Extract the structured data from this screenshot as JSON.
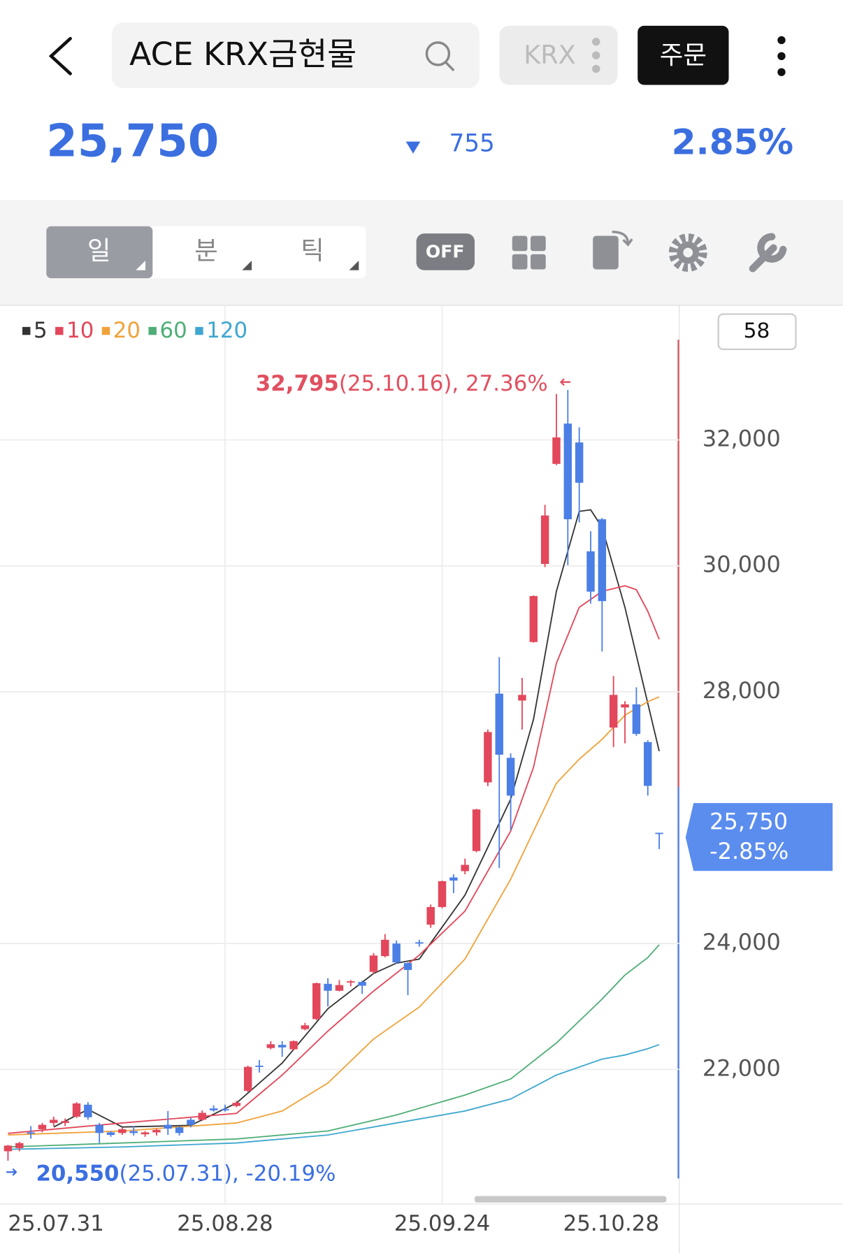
{
  "header": {
    "title": "ACE KRX금현물",
    "exchange": "KRX",
    "order_button": "주문"
  },
  "quote": {
    "price": "25,750",
    "change": "755",
    "change_percent": "2.85%"
  },
  "toolbar": {
    "tabs": [
      "일",
      "분",
      "틱"
    ],
    "toggle": "OFF"
  },
  "chart_data": {
    "type": "candlestick",
    "visible_count": "58",
    "categories": [
      "25.07.31",
      null,
      null,
      null,
      null,
      null,
      null,
      null,
      null,
      null,
      null,
      null,
      null,
      null,
      null,
      null,
      null,
      null,
      null,
      "25.08.28",
      null,
      null,
      null,
      null,
      null,
      null,
      null,
      null,
      null,
      null,
      null,
      null,
      null,
      null,
      null,
      null,
      null,
      null,
      "25.09.24",
      null,
      null,
      null,
      null,
      null,
      null,
      null,
      null,
      null,
      null,
      null,
      null,
      null,
      null,
      null,
      null,
      null,
      null,
      "25.10.28"
    ],
    "open": [
      20700,
      20750,
      21000,
      21050,
      21150,
      21150,
      21250,
      21440,
      21120,
      21000,
      20990,
      21020,
      20970,
      21000,
      21120,
      21080,
      21200,
      21200,
      21380,
      21370,
      21420,
      21660,
      22060,
      22340,
      22390,
      22320,
      22640,
      22800,
      23360,
      23250,
      23380,
      23390,
      23550,
      23800,
      24000,
      23690,
      24020,
      24300,
      24580,
      25050,
      25150,
      25470,
      26560,
      27970,
      26950,
      27860,
      28790,
      30030,
      31620,
      32260,
      31960,
      30230,
      30740,
      27430,
      27750,
      27800,
      27200,
      25760
    ],
    "high": [
      20800,
      20850,
      21100,
      21150,
      21250,
      21220,
      21480,
      21480,
      21150,
      21020,
      21080,
      21100,
      21020,
      21060,
      21340,
      21100,
      21230,
      21350,
      21430,
      21440,
      21500,
      22060,
      22150,
      22450,
      22450,
      22460,
      22740,
      23380,
      23450,
      23420,
      23420,
      23410,
      23850,
      24150,
      24050,
      23700,
      24060,
      24620,
      25000,
      25100,
      25350,
      26140,
      27400,
      28550,
      27020,
      28220,
      29530,
      30970,
      32730,
      32795,
      32200,
      30550,
      30760,
      28250,
      27850,
      28070,
      27230,
      25760
    ],
    "low": [
      20550,
      20700,
      20900,
      21000,
      21100,
      21100,
      21230,
      21200,
      20830,
      20930,
      20960,
      20950,
      20930,
      20950,
      20960,
      20950,
      21080,
      21180,
      21330,
      21330,
      21400,
      21640,
      21950,
      22320,
      22200,
      22300,
      22620,
      22780,
      23000,
      23240,
      23320,
      23200,
      23520,
      23780,
      23680,
      23180,
      23950,
      24250,
      24560,
      24800,
      25100,
      25450,
      26500,
      25200,
      25800,
      27400,
      28780,
      29980,
      31600,
      30010,
      30690,
      29400,
      28640,
      27120,
      27180,
      27300,
      26350,
      25500
    ],
    "close": [
      20790,
      20830,
      20980,
      21120,
      21200,
      21180,
      21460,
      21240,
      20990,
      20960,
      21050,
      20990,
      21000,
      21040,
      21060,
      20990,
      21120,
      21310,
      21350,
      21360,
      21470,
      22040,
      22040,
      22400,
      22350,
      22450,
      22700,
      23370,
      23250,
      23340,
      23400,
      23330,
      23810,
      24060,
      23700,
      23580,
      24000,
      24580,
      24990,
      25000,
      25250,
      26130,
      27360,
      27000,
      26350,
      27950,
      29520,
      30800,
      32040,
      30740,
      31320,
      29590,
      29440,
      27950,
      27800,
      27330,
      26505,
      25750
    ],
    "up_color": "#e2475b",
    "down_color": "#4b7fe6",
    "series": [
      {
        "name": "5",
        "color": "#333333",
        "x": [
          4,
          7,
          10,
          16,
          20,
          24,
          28,
          32,
          34,
          36,
          40,
          44,
          46,
          48,
          50,
          51,
          52,
          54,
          56,
          57
        ],
        "values": [
          21086,
          21365,
          21086,
          21111,
          21467,
          22102,
          22965,
          23524,
          23689,
          23753,
          24769,
          26293,
          27563,
          29595,
          30865,
          30890,
          30611,
          29341,
          27817,
          27055
        ]
      },
      {
        "name": "10",
        "color": "#e2475b",
        "x": [
          0,
          10,
          20,
          24,
          28,
          32,
          36,
          40,
          44,
          46,
          48,
          50,
          52,
          54,
          55,
          56,
          57
        ],
        "values": [
          20984,
          21149,
          21302,
          21911,
          22610,
          23245,
          23816,
          24515,
          25785,
          26801,
          28452,
          29341,
          29595,
          29684,
          29620,
          29277,
          28833
        ]
      },
      {
        "name": "20",
        "color": "#f0a23a",
        "x": [
          0,
          10,
          20,
          24,
          28,
          32,
          36,
          40,
          44,
          48,
          50,
          52,
          54,
          56,
          57
        ],
        "values": [
          20959,
          21022,
          21149,
          21340,
          21784,
          22483,
          22991,
          23753,
          25023,
          26547,
          26928,
          27245,
          27626,
          27842,
          27918
        ]
      },
      {
        "name": "60",
        "color": "#4fae78",
        "x": [
          0,
          10,
          20,
          28,
          34,
          40,
          44,
          48,
          52,
          54,
          56,
          57
        ],
        "values": [
          20768,
          20832,
          20895,
          21022,
          21276,
          21594,
          21848,
          22419,
          23118,
          23499,
          23778,
          23981
        ]
      },
      {
        "name": "120",
        "color": "#3fa7cf",
        "x": [
          0,
          10,
          20,
          28,
          34,
          40,
          44,
          48,
          52,
          54,
          56,
          57
        ],
        "values": [
          20730,
          20768,
          20832,
          20959,
          21149,
          21340,
          21530,
          21911,
          22165,
          22229,
          22330,
          22394
        ]
      }
    ],
    "ylim": [
      19950,
      34100
    ],
    "yticks": [
      {
        "value": 22000,
        "label": "22,000"
      },
      {
        "value": 24000,
        "label": "24,000"
      },
      {
        "value": 28000,
        "label": "28,000"
      },
      {
        "value": 30000,
        "label": "30,000"
      },
      {
        "value": 32000,
        "label": "32,000"
      }
    ],
    "grid": true,
    "high_note": {
      "price": "32,795",
      "detail": "(25.10.16), 27.36%"
    },
    "low_note": {
      "price": "20,550",
      "detail": "(25.07.31), -20.19%"
    },
    "last_tag": {
      "price": "25,750",
      "change": "-2.85%"
    }
  }
}
